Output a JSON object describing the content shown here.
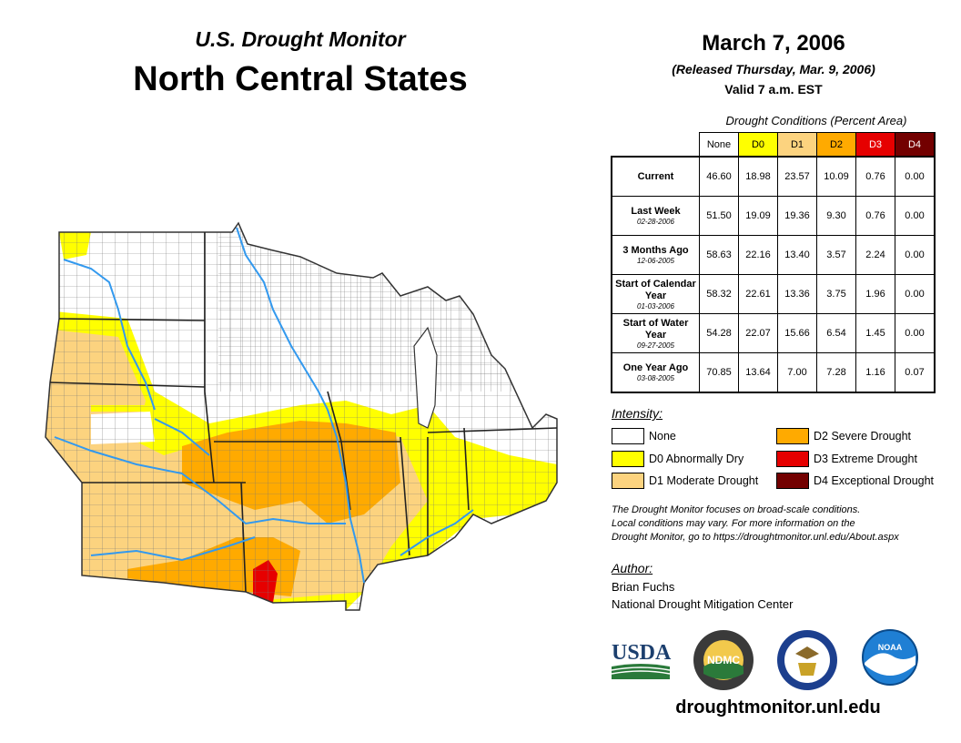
{
  "header": {
    "subtitle": "U.S. Drought Monitor",
    "title": "North Central States",
    "date": "March 7, 2006",
    "released": "(Released Thursday, Mar. 9, 2006)",
    "valid": "Valid 7 a.m. EST"
  },
  "table": {
    "caption": "Drought Conditions (Percent Area)",
    "columns": [
      "None",
      "D0",
      "D1",
      "D2",
      "D3",
      "D4"
    ],
    "column_colors": [
      "#ffffff",
      "#ffff00",
      "#fcd37f",
      "#ffaa00",
      "#e60000",
      "#730000"
    ],
    "rows": [
      {
        "label": "Current",
        "date": "",
        "values": [
          "46.60",
          "18.98",
          "23.57",
          "10.09",
          "0.76",
          "0.00"
        ]
      },
      {
        "label": "Last Week",
        "date": "02-28-2006",
        "values": [
          "51.50",
          "19.09",
          "19.36",
          "9.30",
          "0.76",
          "0.00"
        ]
      },
      {
        "label": "3 Months Ago",
        "date": "12-06-2005",
        "values": [
          "58.63",
          "22.16",
          "13.40",
          "3.57",
          "2.24",
          "0.00"
        ]
      },
      {
        "label": "Start of Calendar Year",
        "date": "01-03-2006",
        "values": [
          "58.32",
          "22.61",
          "13.36",
          "3.75",
          "1.96",
          "0.00"
        ]
      },
      {
        "label": "Start of Water Year",
        "date": "09-27-2005",
        "values": [
          "54.28",
          "22.07",
          "15.66",
          "6.54",
          "1.45",
          "0.00"
        ]
      },
      {
        "label": "One Year Ago",
        "date": "03-08-2005",
        "values": [
          "70.85",
          "13.64",
          "7.00",
          "7.28",
          "1.16",
          "0.07"
        ]
      }
    ]
  },
  "legend": {
    "heading": "Intensity:",
    "items": [
      {
        "label": "None",
        "color": "#ffffff"
      },
      {
        "label": "D0 Abnormally Dry",
        "color": "#ffff00"
      },
      {
        "label": "D1 Moderate Drought",
        "color": "#fcd37f"
      },
      {
        "label": "D2 Severe Drought",
        "color": "#ffaa00"
      },
      {
        "label": "D3 Extreme Drought",
        "color": "#e60000"
      },
      {
        "label": "D4 Exceptional Drought",
        "color": "#730000"
      }
    ]
  },
  "note": {
    "line1": "The Drought Monitor focuses on broad-scale conditions.",
    "line2": "Local conditions may vary. For more information on the",
    "line3": "Drought Monitor, go to https://droughtmonitor.unl.edu/About.aspx"
  },
  "author": {
    "heading": "Author:",
    "name": "Brian Fuchs",
    "org": "National Drought Mitigation Center"
  },
  "logos": {
    "usda": "USDA",
    "ndmc": "NDMC",
    "noaa": "NOAA"
  },
  "website": "droughtmonitor.unl.edu",
  "colors": {
    "water": "#3399ee",
    "border": "#555555"
  }
}
